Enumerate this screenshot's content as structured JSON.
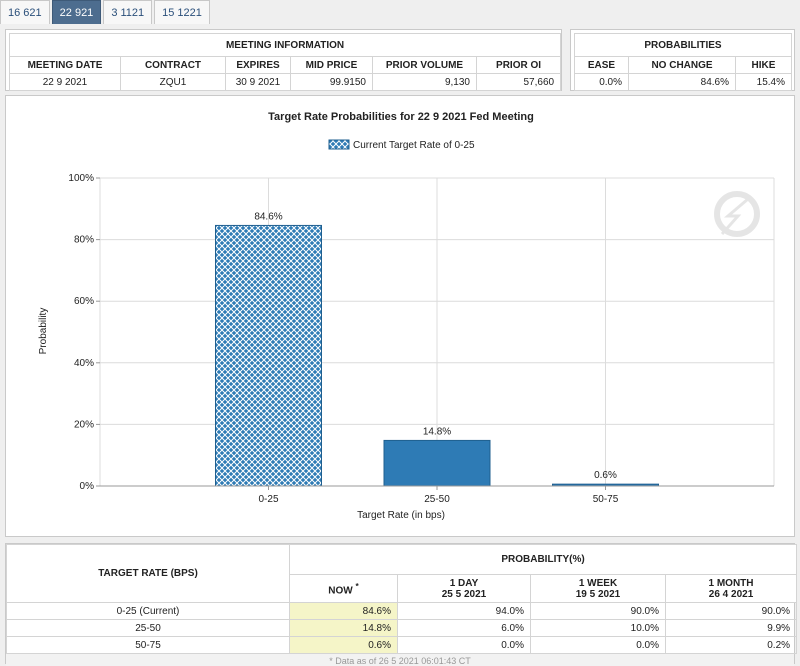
{
  "tabs": [
    "16 621",
    "22 921",
    "3 1121",
    "15 1221"
  ],
  "active_tab": 1,
  "meeting_info": {
    "title": "MEETING INFORMATION",
    "headers": [
      "MEETING DATE",
      "CONTRACT",
      "EXPIRES",
      "MID PRICE",
      "PRIOR VOLUME",
      "PRIOR OI"
    ],
    "values": [
      "22 9 2021",
      "ZQU1",
      "30 9 2021",
      "99.9150",
      "9,130",
      "57,660"
    ]
  },
  "probabilities": {
    "title": "PROBABILITIES",
    "headers": [
      "EASE",
      "NO CHANGE",
      "HIKE"
    ],
    "values": [
      "0.0%",
      "84.6%",
      "15.4%"
    ]
  },
  "chart_data": {
    "type": "bar",
    "title": "Target Rate Probabilities for 22 9 2021 Fed Meeting",
    "legend": "Current Target Rate of 0-25",
    "xlabel": "Target Rate (in bps)",
    "ylabel": "Probability",
    "categories": [
      "0-25",
      "25-50",
      "50-75"
    ],
    "values": [
      84.6,
      14.8,
      0.6
    ],
    "value_labels": [
      "84.6%",
      "14.8%",
      "0.6%"
    ],
    "current_index": 0,
    "ylim": [
      0,
      100
    ],
    "yticks": [
      0,
      20,
      40,
      60,
      80,
      100
    ],
    "ytick_labels": [
      "0%",
      "20%",
      "40%",
      "60%",
      "80%",
      "100%"
    ],
    "grid": true,
    "legend_position": "top-center",
    "bar_color": "#2e7bb5"
  },
  "prob_table": {
    "rate_header": "TARGET RATE (BPS)",
    "prob_header": "PROBABILITY(%)",
    "columns": [
      {
        "l1": "NOW",
        "l2": ""
      },
      {
        "l1": "1 DAY",
        "l2": "25 5 2021"
      },
      {
        "l1": "1 WEEK",
        "l2": "19 5 2021"
      },
      {
        "l1": "1 MONTH",
        "l2": "26 4 2021"
      }
    ],
    "now_mark": "*",
    "rows": [
      {
        "rate": "0-25 (Current)",
        "vals": [
          "84.6%",
          "94.0%",
          "90.0%",
          "90.0%"
        ]
      },
      {
        "rate": "25-50",
        "vals": [
          "14.8%",
          "6.0%",
          "10.0%",
          "9.9%"
        ]
      },
      {
        "rate": "50-75",
        "vals": [
          "0.6%",
          "0.0%",
          "0.0%",
          "0.2%"
        ]
      }
    ],
    "footnote": "* Data as of 26 5 2021 06:01:43 CT"
  }
}
